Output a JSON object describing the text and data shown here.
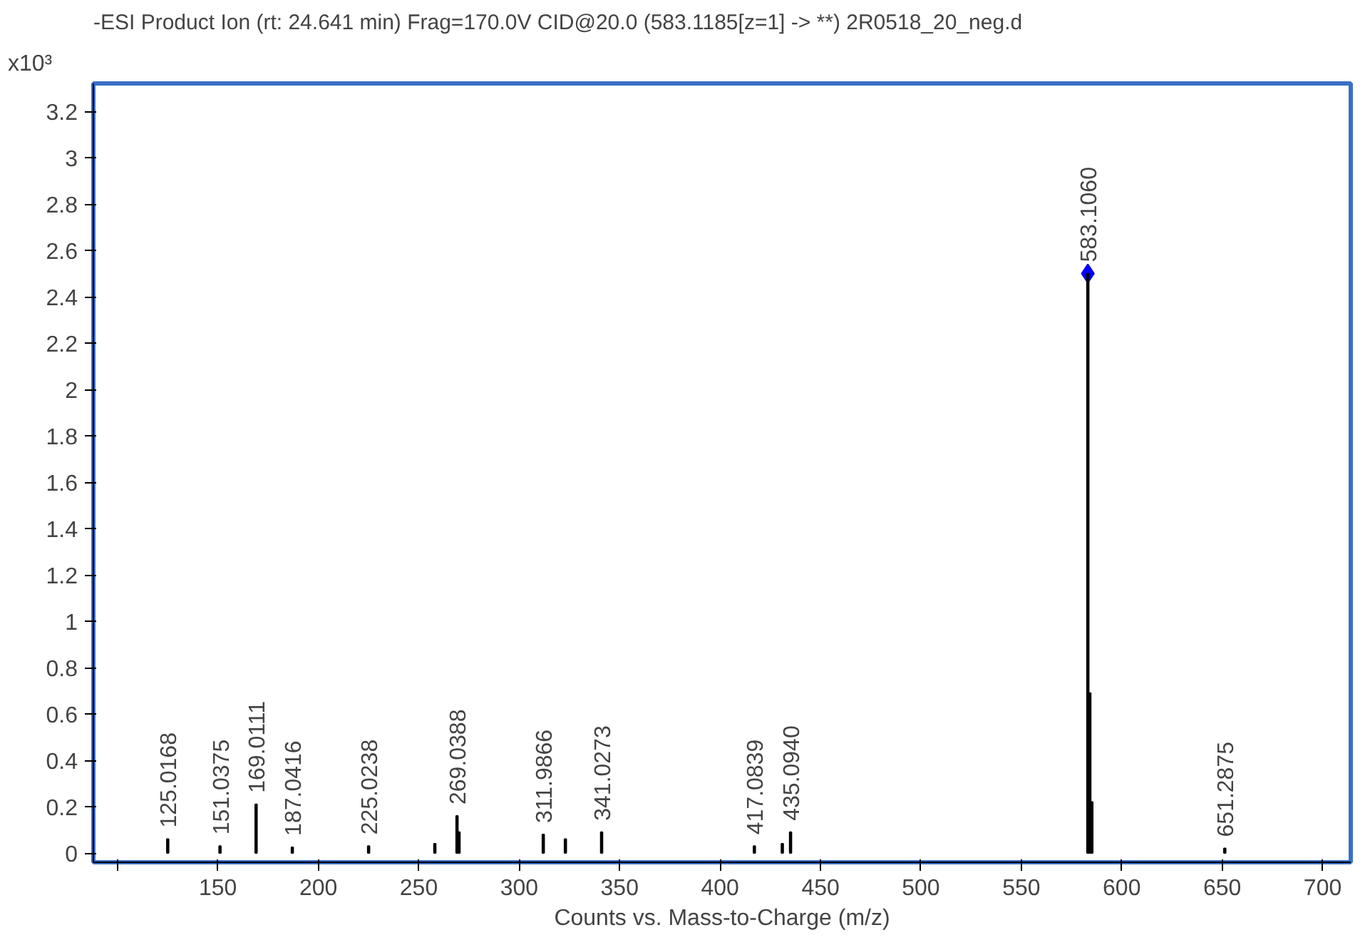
{
  "chart_data": {
    "type": "bar",
    "title": "-ESI Product Ion (rt: 24.641 min) Frag=170.0V CID@20.0 (583.1185[z=1] -> **) 2R0518_20_neg.d",
    "xlabel": "Counts vs. Mass-to-Charge (m/z)",
    "ylabel": "x10³",
    "series": [
      {
        "color": "#000000",
        "x": [
          125.0168,
          151.0375,
          169.0111,
          187.0416,
          225.0238,
          258.0,
          269.0388,
          270.04,
          311.9866,
          323.0,
          341.0273,
          417.0839,
          431.0,
          435.094,
          583.106,
          584.1,
          585.1,
          651.2875
        ],
        "values": [
          0.06,
          0.03,
          0.21,
          0.025,
          0.03,
          0.04,
          0.16,
          0.09,
          0.08,
          0.06,
          0.09,
          0.03,
          0.04,
          0.09,
          2.5,
          0.69,
          0.22,
          0.02
        ]
      },
      {
        "type": "scatter",
        "color": "#0000ff",
        "marker": "diamond",
        "x": [
          583.106
        ],
        "values": [
          2.5
        ]
      }
    ],
    "annotations": [
      {
        "text": "125.0168",
        "x": 125.0168,
        "y": 0.06
      },
      {
        "text": "151.0375",
        "x": 151.0375,
        "y": 0.03
      },
      {
        "text": "169.0111",
        "x": 169.0111,
        "y": 0.21
      },
      {
        "text": "187.0416",
        "x": 187.0416,
        "y": 0.025
      },
      {
        "text": "225.0238",
        "x": 225.0238,
        "y": 0.03
      },
      {
        "text": "269.0388",
        "x": 269.0388,
        "y": 0.16
      },
      {
        "text": "311.9866",
        "x": 311.9866,
        "y": 0.08
      },
      {
        "text": "341.0273",
        "x": 341.0273,
        "y": 0.09
      },
      {
        "text": "417.0839",
        "x": 417.0839,
        "y": 0.03
      },
      {
        "text": "435.0940",
        "x": 435.094,
        "y": 0.09
      },
      {
        "text": "583.1060",
        "x": 583.106,
        "y": 2.5
      },
      {
        "text": "651.2875",
        "x": 651.2875,
        "y": 0.02
      }
    ],
    "xlim": [
      88,
      714
    ],
    "ylim": [
      -0.04,
      3.32
    ],
    "xticks": [
      {
        "value": 100,
        "label": null
      },
      150,
      200,
      250,
      300,
      350,
      400,
      450,
      500,
      550,
      600,
      650,
      700
    ],
    "yticks": [
      0,
      0.2,
      0.4,
      0.6,
      0.8,
      1,
      1.2,
      1.4,
      1.6,
      1.8,
      2,
      2.2,
      2.4,
      2.6,
      2.8,
      3,
      3.2
    ],
    "grid": false
  }
}
